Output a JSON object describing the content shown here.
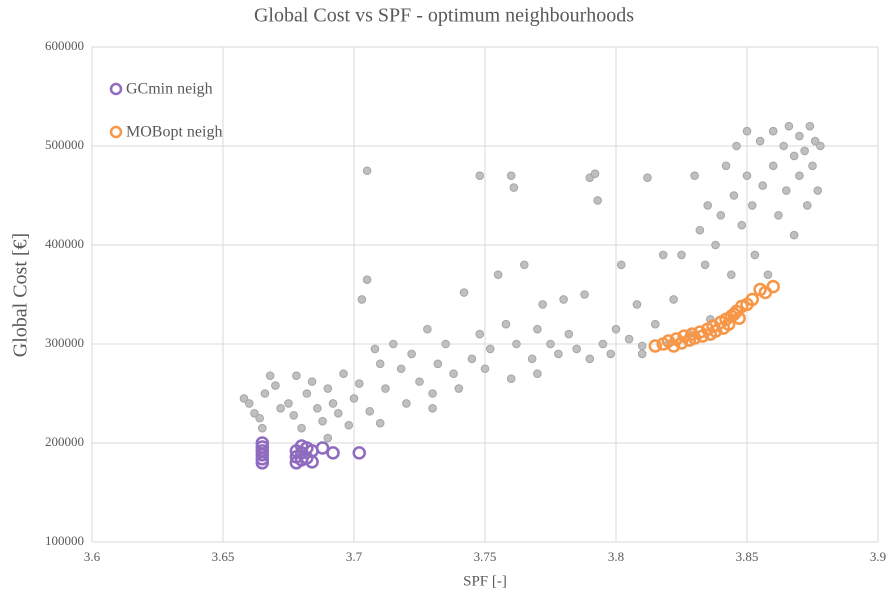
{
  "chart_data": {
    "type": "scatter",
    "title": "Global Cost vs SPF - optimum neighbourhoods",
    "xlabel": "SPF [-]",
    "ylabel": "Global Cost [€]",
    "xlim": [
      3.6,
      3.9
    ],
    "xticks": [
      3.6,
      3.65,
      3.7,
      3.75,
      3.8,
      3.85,
      3.9
    ],
    "ylim": [
      100000,
      600000
    ],
    "yticks": [
      100000,
      200000,
      300000,
      400000,
      500000,
      600000
    ],
    "grid": true,
    "legend": "top-left",
    "series": [
      {
        "color": "#a6a6a6",
        "hollow": false,
        "x": [
          3.658,
          3.66,
          3.662,
          3.664,
          3.665,
          3.666,
          3.668,
          3.67,
          3.672,
          3.675,
          3.677,
          3.678,
          3.68,
          3.682,
          3.684,
          3.686,
          3.688,
          3.69,
          3.692,
          3.694,
          3.696,
          3.698,
          3.7,
          3.702,
          3.703,
          3.705,
          3.705,
          3.706,
          3.708,
          3.71,
          3.712,
          3.715,
          3.718,
          3.72,
          3.722,
          3.725,
          3.728,
          3.73,
          3.732,
          3.735,
          3.738,
          3.74,
          3.742,
          3.745,
          3.748,
          3.748,
          3.75,
          3.752,
          3.755,
          3.758,
          3.76,
          3.761,
          3.762,
          3.765,
          3.768,
          3.77,
          3.772,
          3.775,
          3.778,
          3.78,
          3.782,
          3.785,
          3.788,
          3.79,
          3.792,
          3.793,
          3.795,
          3.798,
          3.8,
          3.802,
          3.805,
          3.808,
          3.81,
          3.812,
          3.815,
          3.818,
          3.82,
          3.822,
          3.825,
          3.828,
          3.83,
          3.832,
          3.834,
          3.835,
          3.836,
          3.838,
          3.84,
          3.842,
          3.844,
          3.845,
          3.846,
          3.848,
          3.85,
          3.85,
          3.852,
          3.853,
          3.855,
          3.856,
          3.858,
          3.86,
          3.86,
          3.862,
          3.864,
          3.865,
          3.866,
          3.868,
          3.868,
          3.87,
          3.87,
          3.872,
          3.873,
          3.874,
          3.875,
          3.876,
          3.877,
          3.878,
          3.68,
          3.69,
          3.71,
          3.73,
          3.76,
          3.79,
          3.81,
          3.77
        ],
        "y": [
          245000,
          240000,
          230000,
          225000,
          215000,
          250000,
          268000,
          258000,
          235000,
          240000,
          228000,
          268000,
          215000,
          250000,
          262000,
          235000,
          222000,
          255000,
          240000,
          230000,
          270000,
          218000,
          245000,
          260000,
          345000,
          365000,
          475000,
          232000,
          295000,
          280000,
          255000,
          300000,
          275000,
          240000,
          290000,
          262000,
          315000,
          250000,
          280000,
          300000,
          270000,
          255000,
          352000,
          285000,
          470000,
          310000,
          275000,
          295000,
          370000,
          320000,
          470000,
          458000,
          300000,
          380000,
          285000,
          315000,
          340000,
          300000,
          290000,
          345000,
          310000,
          295000,
          350000,
          468000,
          472000,
          445000,
          300000,
          290000,
          315000,
          380000,
          305000,
          340000,
          298000,
          468000,
          320000,
          390000,
          300000,
          345000,
          390000,
          310000,
          470000,
          415000,
          380000,
          440000,
          325000,
          400000,
          430000,
          480000,
          370000,
          450000,
          500000,
          420000,
          515000,
          470000,
          440000,
          390000,
          505000,
          460000,
          370000,
          515000,
          480000,
          430000,
          500000,
          455000,
          520000,
          490000,
          410000,
          510000,
          470000,
          495000,
          440000,
          520000,
          480000,
          505000,
          455000,
          500000,
          190000,
          205000,
          220000,
          235000,
          265000,
          285000,
          290000,
          270000
        ]
      },
      {
        "name": "GCmin neigh",
        "color": "#8e6bbf",
        "hollow": true,
        "x": [
          3.665,
          3.665,
          3.665,
          3.665,
          3.665,
          3.665,
          3.678,
          3.678,
          3.678,
          3.68,
          3.68,
          3.68,
          3.682,
          3.682,
          3.684,
          3.684,
          3.688,
          3.692,
          3.702
        ],
        "y": [
          180000,
          184000,
          188000,
          192000,
          196000,
          200000,
          180000,
          186000,
          192000,
          183000,
          190000,
          197000,
          185000,
          195000,
          181000,
          192000,
          195000,
          190000,
          190000
        ]
      },
      {
        "name": "MOBopt neigh",
        "color": "#f79646",
        "hollow": true,
        "x": [
          3.815,
          3.818,
          3.82,
          3.822,
          3.823,
          3.825,
          3.826,
          3.828,
          3.829,
          3.83,
          3.832,
          3.833,
          3.835,
          3.836,
          3.837,
          3.838,
          3.84,
          3.841,
          3.842,
          3.843,
          3.844,
          3.845,
          3.846,
          3.847,
          3.848,
          3.85,
          3.852,
          3.855,
          3.857,
          3.86
        ],
        "y": [
          298000,
          300000,
          303000,
          298000,
          305000,
          301000,
          308000,
          304000,
          310000,
          306000,
          312000,
          308000,
          315000,
          310000,
          318000,
          313000,
          322000,
          316000,
          325000,
          320000,
          328000,
          330000,
          333000,
          326000,
          338000,
          340000,
          345000,
          355000,
          352000,
          358000
        ]
      }
    ]
  }
}
